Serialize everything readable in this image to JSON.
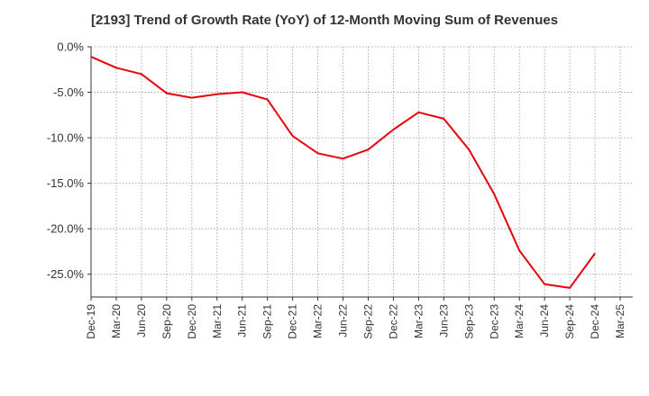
{
  "chart_data": {
    "type": "line",
    "title": "[2193]  Trend of Growth Rate (YoY) of 12-Month Moving Sum of Revenues",
    "xlabel": "",
    "ylabel": "",
    "x_ticks": [
      "Dec-19",
      "Mar-20",
      "Jun-20",
      "Sep-20",
      "Dec-20",
      "Mar-21",
      "Jun-21",
      "Sep-21",
      "Dec-21",
      "Mar-22",
      "Jun-22",
      "Sep-22",
      "Dec-22",
      "Mar-23",
      "Jun-23",
      "Sep-23",
      "Dec-23",
      "Mar-24",
      "Jun-24",
      "Sep-24",
      "Dec-24",
      "Mar-25"
    ],
    "y_ticks": [
      "0.0%",
      "-5.0%",
      "-10.0%",
      "-15.0%",
      "-20.0%",
      "-25.0%"
    ],
    "y_tick_values": [
      0,
      -5,
      -10,
      -15,
      -20,
      -25
    ],
    "ylim": [
      -27.5,
      0
    ],
    "grid": true,
    "series": [
      {
        "color": "#e8000b",
        "x": [
          "Dec-19",
          "Mar-20",
          "Jun-20",
          "Sep-20",
          "Dec-20",
          "Mar-21",
          "Jun-21",
          "Sep-21",
          "Dec-21",
          "Mar-22",
          "Jun-22",
          "Sep-22",
          "Dec-22",
          "Mar-23",
          "Jun-23",
          "Sep-23",
          "Dec-23",
          "Mar-24",
          "Jun-24",
          "Sep-24",
          "Dec-24"
        ],
        "values": [
          -1.1,
          -2.3,
          -3.0,
          -5.1,
          -5.6,
          -5.2,
          -5.0,
          -5.8,
          -9.8,
          -11.7,
          -12.3,
          -11.3,
          -9.1,
          -7.2,
          -7.9,
          -11.3,
          -16.2,
          -22.4,
          -26.1,
          -26.5,
          -22.7
        ]
      }
    ]
  }
}
